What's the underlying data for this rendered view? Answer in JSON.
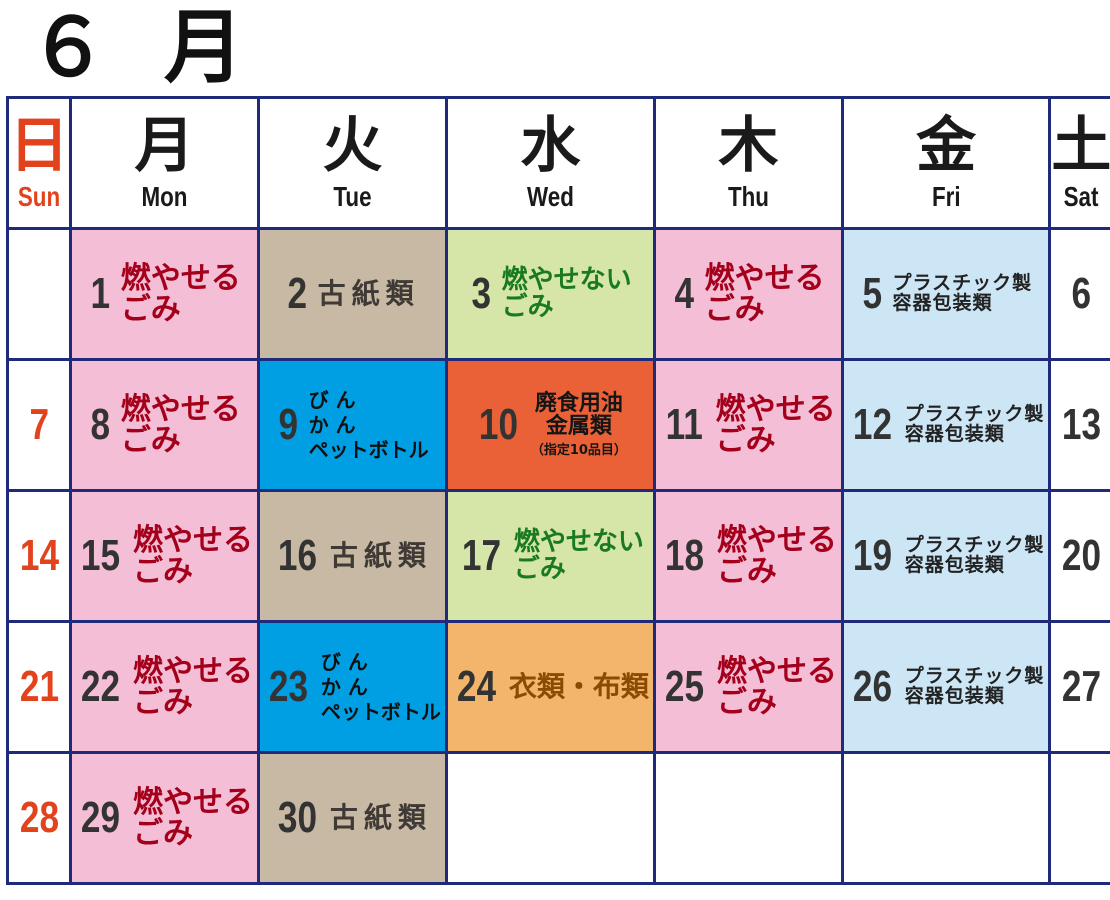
{
  "title": "６ 月",
  "weekdays": [
    {
      "kanji": "日",
      "en": "Sun"
    },
    {
      "kanji": "月",
      "en": "Mon"
    },
    {
      "kanji": "火",
      "en": "Tue"
    },
    {
      "kanji": "水",
      "en": "Wed"
    },
    {
      "kanji": "木",
      "en": "Thu"
    },
    {
      "kanji": "金",
      "en": "Fri"
    },
    {
      "kanji": "土",
      "en": "Sat"
    }
  ],
  "colors": {
    "burnable": "#f4bfd6",
    "paper": "#c7b9a3",
    "non_burnable": "#d6e6a8",
    "plastic": "#cde6f5",
    "bottles_cans": "#009fe3",
    "oil_metal": "#eb6137",
    "clothes": "#f3b56c",
    "sunday_text": "#e2431d",
    "grid": "#1f2a7a"
  },
  "weeks": [
    [
      {
        "day": "",
        "cat": "empty",
        "lines": []
      },
      {
        "day": "1",
        "cat": "burn",
        "lines": [
          "燃やせる",
          "ごみ"
        ]
      },
      {
        "day": "2",
        "cat": "paper",
        "lines": [
          "古紙類"
        ]
      },
      {
        "day": "3",
        "cat": "nonburn",
        "lines": [
          "燃やせない",
          "ごみ"
        ]
      },
      {
        "day": "4",
        "cat": "burn",
        "lines": [
          "燃やせる",
          "ごみ"
        ]
      },
      {
        "day": "5",
        "cat": "plastic",
        "lines": [
          "プラスチック製",
          "容器包装類"
        ]
      },
      {
        "day": "6",
        "cat": "empty",
        "lines": []
      }
    ],
    [
      {
        "day": "7",
        "cat": "empty",
        "lines": []
      },
      {
        "day": "8",
        "cat": "burn",
        "lines": [
          "燃やせる",
          "ごみ"
        ]
      },
      {
        "day": "9",
        "cat": "bin",
        "lines": [
          "び ん",
          "か ん",
          "ペットボトル"
        ]
      },
      {
        "day": "10",
        "cat": "oil",
        "lines": [
          "廃食用油",
          "金属類"
        ],
        "note": "（指定10品目）"
      },
      {
        "day": "11",
        "cat": "burn",
        "lines": [
          "燃やせる",
          "ごみ"
        ]
      },
      {
        "day": "12",
        "cat": "plastic",
        "lines": [
          "プラスチック製",
          "容器包装類"
        ]
      },
      {
        "day": "13",
        "cat": "empty",
        "lines": []
      }
    ],
    [
      {
        "day": "14",
        "cat": "empty",
        "lines": []
      },
      {
        "day": "15",
        "cat": "burn",
        "lines": [
          "燃やせる",
          "ごみ"
        ]
      },
      {
        "day": "16",
        "cat": "paper",
        "lines": [
          "古紙類"
        ]
      },
      {
        "day": "17",
        "cat": "nonburn",
        "lines": [
          "燃やせない",
          "ごみ"
        ]
      },
      {
        "day": "18",
        "cat": "burn",
        "lines": [
          "燃やせる",
          "ごみ"
        ]
      },
      {
        "day": "19",
        "cat": "plastic",
        "lines": [
          "プラスチック製",
          "容器包装類"
        ]
      },
      {
        "day": "20",
        "cat": "empty",
        "lines": []
      }
    ],
    [
      {
        "day": "21",
        "cat": "empty",
        "lines": []
      },
      {
        "day": "22",
        "cat": "burn",
        "lines": [
          "燃やせる",
          "ごみ"
        ]
      },
      {
        "day": "23",
        "cat": "bin",
        "lines": [
          "び ん",
          "か ん",
          "ペットボトル"
        ]
      },
      {
        "day": "24",
        "cat": "cloth",
        "lines": [
          "衣類・布類"
        ]
      },
      {
        "day": "25",
        "cat": "burn",
        "lines": [
          "燃やせる",
          "ごみ"
        ]
      },
      {
        "day": "26",
        "cat": "plastic",
        "lines": [
          "プラスチック製",
          "容器包装類"
        ]
      },
      {
        "day": "27",
        "cat": "empty",
        "lines": []
      }
    ],
    [
      {
        "day": "28",
        "cat": "empty",
        "lines": []
      },
      {
        "day": "29",
        "cat": "burn",
        "lines": [
          "燃やせる",
          "ごみ"
        ]
      },
      {
        "day": "30",
        "cat": "paper",
        "lines": [
          "古紙類"
        ]
      },
      {
        "day": "",
        "cat": "empty",
        "lines": []
      },
      {
        "day": "",
        "cat": "empty",
        "lines": []
      },
      {
        "day": "",
        "cat": "empty",
        "lines": []
      },
      {
        "day": "",
        "cat": "empty",
        "lines": []
      }
    ]
  ]
}
